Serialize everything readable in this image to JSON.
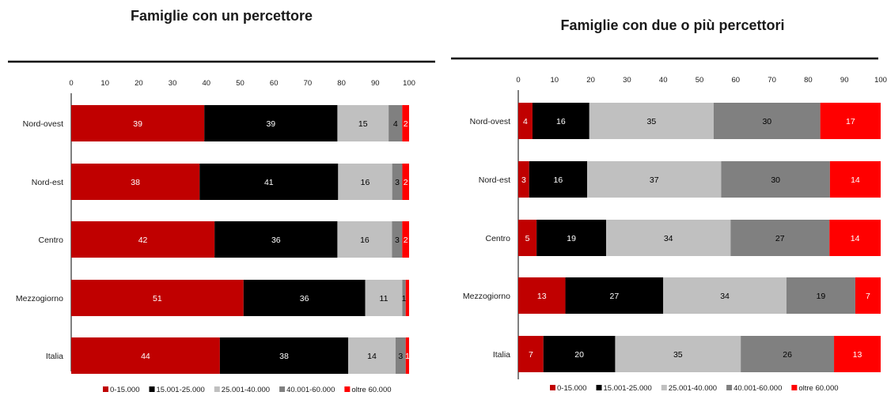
{
  "chart_data": [
    {
      "type": "bar",
      "orientation": "horizontal",
      "stacked": true,
      "title": "Famiglie con un percettore",
      "categories": [
        "Nord-ovest",
        "Nord-est",
        "Centro",
        "Mezzogiorno",
        "Italia"
      ],
      "xlim": [
        0,
        100
      ],
      "ticks": [
        0,
        10,
        20,
        30,
        40,
        50,
        60,
        70,
        80,
        90,
        100
      ],
      "legend_position": "bottom",
      "series": [
        {
          "name": "0-15.000",
          "color": "#c00000",
          "label_color": "#ffffff",
          "values": [
            39,
            38,
            42,
            51,
            44
          ]
        },
        {
          "name": "15.001-25.000",
          "color": "#000000",
          "label_color": "#ffffff",
          "values": [
            39,
            41,
            36,
            36,
            38
          ]
        },
        {
          "name": "25.001-40.000",
          "color": "#c0c0c0",
          "label_color": "#000000",
          "values": [
            15,
            16,
            16,
            11,
            14
          ]
        },
        {
          "name": "40.001-60.000",
          "color": "#808080",
          "label_color": "#000000",
          "values": [
            4,
            3,
            3,
            1,
            3
          ]
        },
        {
          "name": "oltre 60.000",
          "color": "#ff0000",
          "label_color": "#ffffff",
          "values": [
            2,
            2,
            2,
            1,
            1
          ]
        }
      ],
      "data_labels": [
        [
          "39",
          "39",
          "15",
          "4",
          "2"
        ],
        [
          "38",
          "41",
          "16",
          "3",
          "2"
        ],
        [
          "42",
          "36",
          "16",
          "3",
          "2"
        ],
        [
          "51",
          "36",
          "11",
          "1",
          ""
        ],
        [
          "44",
          "38",
          "14",
          "3",
          "1"
        ]
      ]
    },
    {
      "type": "bar",
      "orientation": "horizontal",
      "stacked": true,
      "title": "Famiglie con due o più percettori",
      "categories": [
        "Nord-ovest",
        "Nord-est",
        "Centro",
        "Mezzogiorno",
        "Italia"
      ],
      "xlim": [
        0,
        100
      ],
      "ticks": [
        0,
        10,
        20,
        30,
        40,
        50,
        60,
        70,
        80,
        90,
        100
      ],
      "legend_position": "bottom",
      "series": [
        {
          "name": "0-15.000",
          "color": "#c00000",
          "label_color": "#ffffff",
          "values": [
            4,
            3,
            5,
            13,
            7
          ]
        },
        {
          "name": "15.001-25.000",
          "color": "#000000",
          "label_color": "#ffffff",
          "values": [
            16,
            16,
            19,
            27,
            20
          ]
        },
        {
          "name": "25.001-40.000",
          "color": "#c0c0c0",
          "label_color": "#000000",
          "values": [
            35,
            37,
            34,
            34,
            35
          ]
        },
        {
          "name": "40.001-60.000",
          "color": "#808080",
          "label_color": "#000000",
          "values": [
            30,
            30,
            27,
            19,
            26
          ]
        },
        {
          "name": "oltre 60.000",
          "color": "#ff0000",
          "label_color": "#ffffff",
          "values": [
            17,
            14,
            14,
            7,
            13
          ]
        }
      ],
      "data_labels": [
        [
          "4",
          "16",
          "35",
          "30",
          "17"
        ],
        [
          "3",
          "16",
          "37",
          "30",
          "14"
        ],
        [
          "5",
          "19",
          "34",
          "27",
          "14"
        ],
        [
          "13",
          "27",
          "34",
          "19",
          "7"
        ],
        [
          "7",
          "20",
          "35",
          "26",
          "13"
        ]
      ]
    }
  ]
}
